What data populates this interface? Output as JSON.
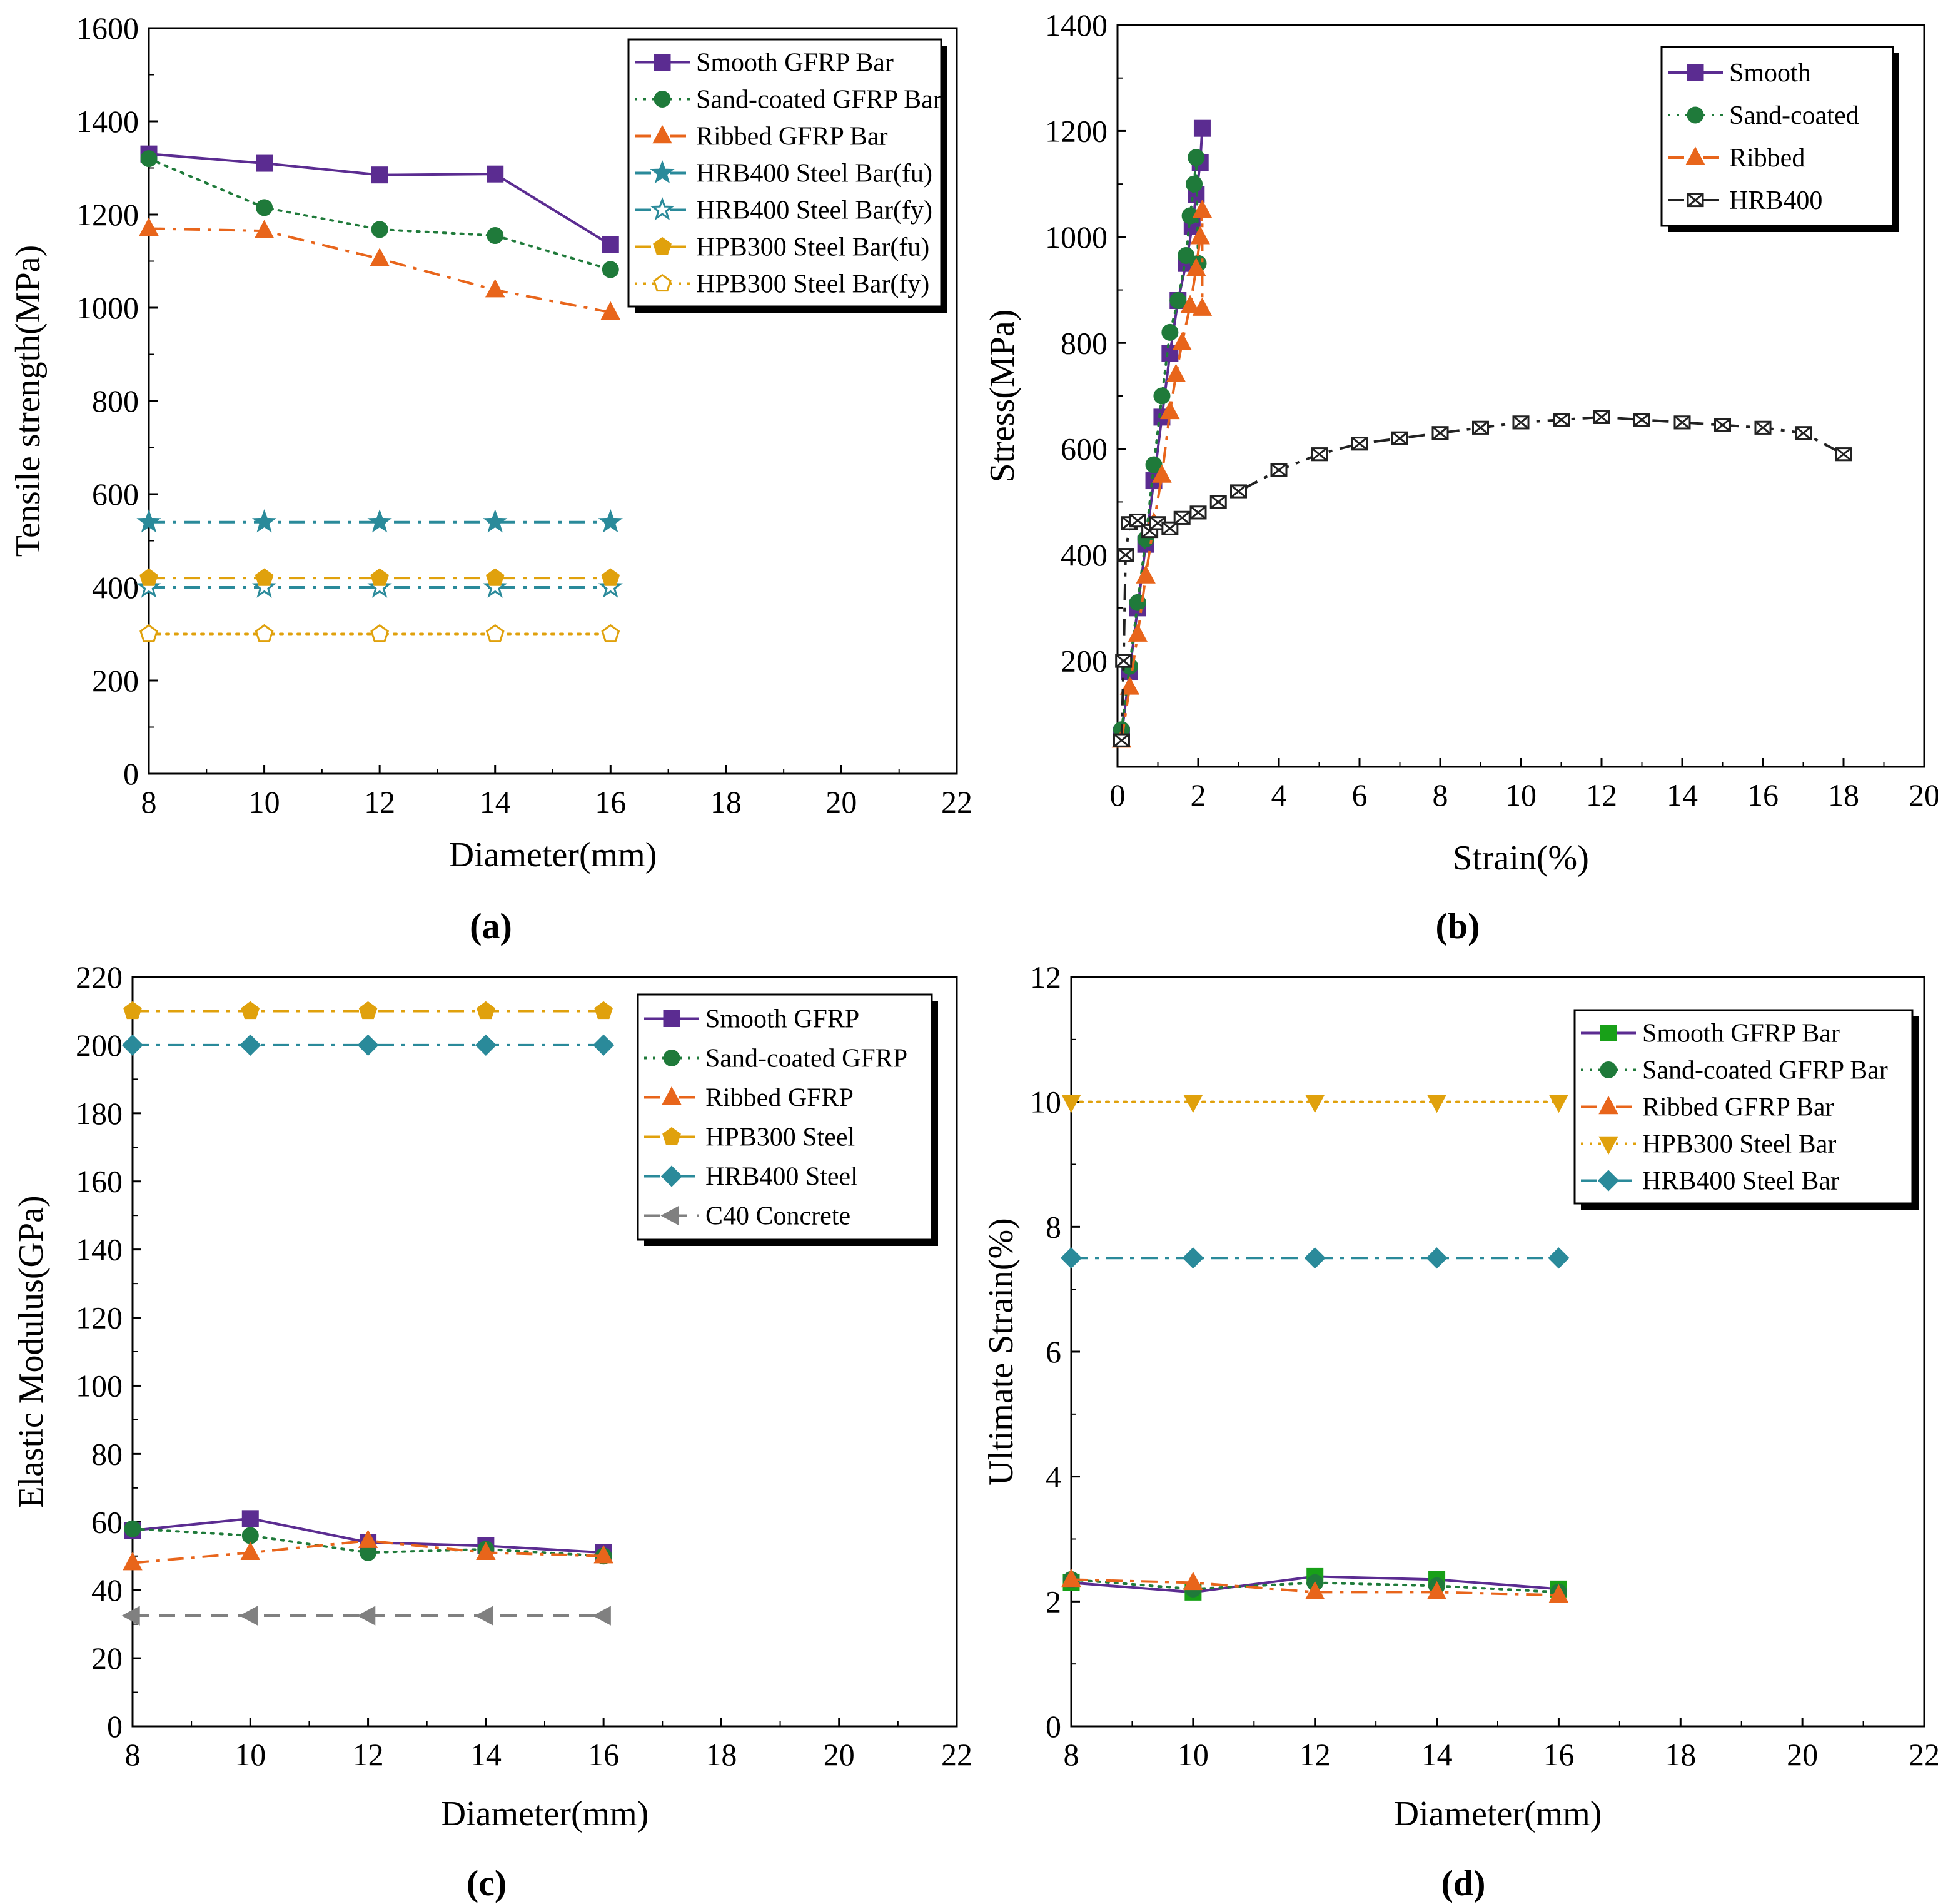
{
  "chart_data": [
    {
      "id": "a",
      "type": "line",
      "panel_label": "(a)",
      "xlabel": "Diameter(mm)",
      "ylabel": "Tensile strength(MPa)",
      "xlim": [
        8,
        22
      ],
      "ylim": [
        0,
        1600
      ],
      "xticks": [
        8,
        10,
        12,
        14,
        16,
        18,
        20,
        22
      ],
      "yticks": [
        0,
        200,
        400,
        600,
        800,
        1000,
        1200,
        1400,
        1600
      ],
      "legend_position": "top-right",
      "series": [
        {
          "name": "Smooth GFRP Bar",
          "color": "#5b2c91",
          "dash": "solid",
          "marker": "square",
          "x": [
            8,
            10,
            12,
            14,
            16
          ],
          "y": [
            1330,
            1310,
            1285,
            1287,
            1135
          ]
        },
        {
          "name": "Sand-coated GFRP Bar",
          "color": "#1f7a3a",
          "dash": "dot",
          "marker": "circle",
          "x": [
            8,
            10,
            12,
            14,
            16
          ],
          "y": [
            1320,
            1215,
            1168,
            1155,
            1082
          ]
        },
        {
          "name": "Ribbed GFRP Bar",
          "color": "#e8651b",
          "dash": "dashdot",
          "marker": "triangle",
          "x": [
            8,
            10,
            12,
            14,
            16
          ],
          "y": [
            1170,
            1165,
            1105,
            1038,
            990
          ]
        },
        {
          "name": "HRB400 Steel Bar(fu)",
          "color": "#2a8a9a",
          "dash": "dashdot",
          "marker": "star",
          "x": [
            8,
            10,
            12,
            14,
            16
          ],
          "y": [
            540,
            540,
            540,
            540,
            540
          ]
        },
        {
          "name": "HRB400 Steel Bar(fy)",
          "color": "#2a8a9a",
          "dash": "dashdot",
          "marker": "star-open",
          "x": [
            8,
            10,
            12,
            14,
            16
          ],
          "y": [
            400,
            400,
            400,
            400,
            400
          ]
        },
        {
          "name": "HPB300 Steel Bar(fu)",
          "color": "#e0a10c",
          "dash": "dashdot",
          "marker": "pentagon",
          "x": [
            8,
            10,
            12,
            14,
            16
          ],
          "y": [
            420,
            420,
            420,
            420,
            420
          ]
        },
        {
          "name": "HPB300 Steel Bar(fy)",
          "color": "#e0a10c",
          "dash": "dot",
          "marker": "pentagon-open",
          "x": [
            8,
            10,
            12,
            14,
            16
          ],
          "y": [
            300,
            300,
            300,
            300,
            300
          ]
        }
      ]
    },
    {
      "id": "b",
      "type": "line",
      "panel_label": "(b)",
      "xlabel": "Strain(%)",
      "ylabel": "Stress(MPa)",
      "xlim": [
        0,
        20
      ],
      "ylim": [
        0,
        1400
      ],
      "xticks": [
        0,
        2,
        4,
        6,
        8,
        10,
        12,
        14,
        16,
        18,
        20
      ],
      "yticks": [
        200,
        400,
        600,
        800,
        1000,
        1200,
        1400
      ],
      "legend_position": "top-right",
      "series": [
        {
          "name": "Smooth",
          "color": "#5b2c91",
          "dash": "solid",
          "marker": "square",
          "x": [
            0.1,
            0.3,
            0.5,
            0.7,
            0.9,
            1.1,
            1.3,
            1.5,
            1.7,
            1.85,
            1.95,
            2.05,
            2.1
          ],
          "y": [
            60,
            180,
            300,
            420,
            540,
            660,
            780,
            880,
            950,
            1020,
            1080,
            1140,
            1205
          ]
        },
        {
          "name": "Sand-coated",
          "color": "#1f7a3a",
          "dash": "dot",
          "marker": "circle",
          "x": [
            0.1,
            0.3,
            0.5,
            0.7,
            0.9,
            1.1,
            1.3,
            1.5,
            1.7,
            1.8,
            1.9,
            1.95,
            2.0
          ],
          "y": [
            70,
            190,
            310,
            430,
            570,
            700,
            820,
            880,
            965,
            1040,
            1100,
            1150,
            950
          ]
        },
        {
          "name": "Ribbed",
          "color": "#e8651b",
          "dash": "dashdot",
          "marker": "triangle",
          "x": [
            0.1,
            0.3,
            0.5,
            0.7,
            0.9,
            1.1,
            1.3,
            1.45,
            1.6,
            1.8,
            1.95,
            2.05,
            2.1,
            2.1
          ],
          "y": [
            50,
            150,
            250,
            360,
            460,
            550,
            670,
            740,
            800,
            870,
            940,
            1000,
            1050,
            865
          ]
        },
        {
          "name": "HRB400",
          "color": "#222222",
          "dash": "dashdot",
          "marker": "xbox",
          "x": [
            0.1,
            0.15,
            0.2,
            0.3,
            0.5,
            0.8,
            1.0,
            1.3,
            1.6,
            2.0,
            2.5,
            3.0,
            4.0,
            5.0,
            6.0,
            7.0,
            8.0,
            9.0,
            10.0,
            11.0,
            12.0,
            13.0,
            14.0,
            15.0,
            16.0,
            17.0,
            18.0
          ],
          "y": [
            50,
            200,
            400,
            460,
            465,
            445,
            460,
            450,
            470,
            480,
            500,
            520,
            560,
            590,
            610,
            620,
            630,
            640,
            650,
            655,
            660,
            655,
            650,
            645,
            640,
            630,
            590
          ]
        }
      ]
    },
    {
      "id": "c",
      "type": "line",
      "panel_label": "(c)",
      "xlabel": "Diameter(mm)",
      "ylabel": "Elastic Modulus(GPa)",
      "xlim": [
        8,
        22
      ],
      "ylim": [
        0,
        220
      ],
      "xticks": [
        8,
        10,
        12,
        14,
        16,
        18,
        20,
        22
      ],
      "yticks": [
        0,
        20,
        40,
        60,
        80,
        100,
        120,
        140,
        160,
        180,
        200,
        220
      ],
      "legend_position": "top-right",
      "series": [
        {
          "name": "Smooth GFRP",
          "color": "#5b2c91",
          "dash": "solid",
          "marker": "square",
          "x": [
            8,
            10,
            12,
            14,
            16
          ],
          "y": [
            57.5,
            61,
            54,
            53,
            51
          ]
        },
        {
          "name": "Sand-coated GFRP",
          "color": "#1f7a3a",
          "dash": "dot",
          "marker": "circle",
          "x": [
            8,
            10,
            12,
            14,
            16
          ],
          "y": [
            58,
            56,
            51,
            52,
            50
          ]
        },
        {
          "name": "Ribbed GFRP",
          "color": "#e8651b",
          "dash": "dashdot",
          "marker": "triangle",
          "x": [
            8,
            10,
            12,
            14,
            16
          ],
          "y": [
            48,
            51,
            54.5,
            51,
            50
          ]
        },
        {
          "name": "HPB300 Steel",
          "color": "#e0a10c",
          "dash": "dashdot",
          "marker": "pentagon",
          "x": [
            8,
            10,
            12,
            14,
            16
          ],
          "y": [
            210,
            210,
            210,
            210,
            210
          ]
        },
        {
          "name": "HRB400 Steel",
          "color": "#2a8a9a",
          "dash": "dashdot",
          "marker": "diamond",
          "x": [
            8,
            10,
            12,
            14,
            16
          ],
          "y": [
            200,
            200,
            200,
            200,
            200
          ]
        },
        {
          "name": "C40 Concrete",
          "color": "#808080",
          "dash": "dash",
          "marker": "triangle-left",
          "x": [
            8,
            10,
            12,
            14,
            16
          ],
          "y": [
            32.5,
            32.5,
            32.5,
            32.5,
            32.5
          ]
        }
      ]
    },
    {
      "id": "d",
      "type": "line",
      "panel_label": "(d)",
      "xlabel": "Diameter(mm)",
      "ylabel": "Ultimate Strain(%)",
      "xlim": [
        8,
        22
      ],
      "ylim": [
        0,
        12
      ],
      "xticks": [
        8,
        10,
        12,
        14,
        16,
        18,
        20,
        22
      ],
      "yticks": [
        0,
        2,
        4,
        6,
        8,
        10,
        12
      ],
      "legend_position": "top-right",
      "series": [
        {
          "name": "Smooth GFRP Bar",
          "color": "#5b2c91",
          "marker_color": "#18a018",
          "dash": "solid",
          "marker": "square",
          "x": [
            8,
            10,
            12,
            14,
            16
          ],
          "y": [
            2.3,
            2.15,
            2.4,
            2.35,
            2.2
          ]
        },
        {
          "name": "Sand-coated GFRP Bar",
          "color": "#1f7a3a",
          "dash": "dot",
          "marker": "circle",
          "x": [
            8,
            10,
            12,
            14,
            16
          ],
          "y": [
            2.35,
            2.2,
            2.3,
            2.25,
            2.15
          ]
        },
        {
          "name": "Ribbed GFRP Bar",
          "color": "#e8651b",
          "dash": "dashdot",
          "marker": "triangle",
          "x": [
            8,
            10,
            12,
            14,
            16
          ],
          "y": [
            2.35,
            2.3,
            2.15,
            2.15,
            2.1
          ]
        },
        {
          "name": "HPB300 Steel Bar",
          "color": "#e0a10c",
          "dash": "dot",
          "marker": "triangle-down",
          "x": [
            8,
            10,
            12,
            14,
            16
          ],
          "y": [
            10,
            10,
            10,
            10,
            10
          ]
        },
        {
          "name": "HRB400 Steel Bar",
          "color": "#2a8a9a",
          "dash": "dashdot",
          "marker": "diamond",
          "x": [
            8,
            10,
            12,
            14,
            16
          ],
          "y": [
            7.5,
            7.5,
            7.5,
            7.5,
            7.5
          ]
        }
      ]
    }
  ]
}
